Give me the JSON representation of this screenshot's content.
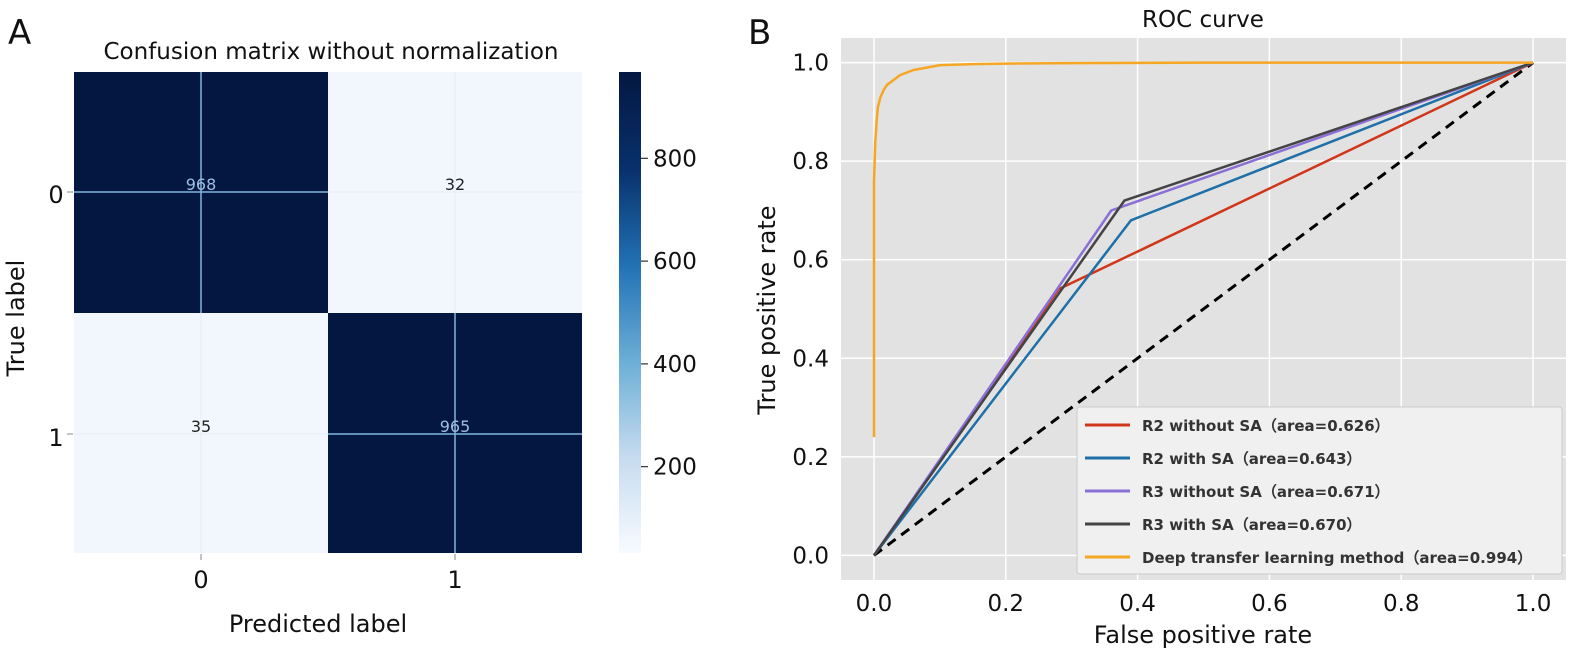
{
  "panels": {
    "a_letter": "A",
    "b_letter": "B"
  },
  "colors": {
    "dark_cell": "#041741",
    "light_cell": "#f2f7fd",
    "matrix_grid": "#7fb5dd",
    "roc_bg": "#e2e2e2",
    "roc_grid": "#ffffff",
    "chance_line": "#000000"
  },
  "chart_data": [
    {
      "type": "heatmap",
      "title": "Confusion matrix without normalization",
      "xlabel": "Predicted label",
      "ylabel": "True label",
      "row_labels": [
        "0",
        "1"
      ],
      "col_labels": [
        "0",
        "1"
      ],
      "values": [
        [
          968,
          32
        ],
        [
          35,
          965
        ]
      ],
      "colorbar": {
        "ticks": [
          200,
          400,
          600,
          800
        ],
        "range": [
          32,
          968
        ],
        "colormap": "Blues"
      },
      "grid": true
    },
    {
      "type": "line",
      "title": "ROC curve",
      "xlabel": "False positive rate",
      "ylabel": "True positive rate",
      "xlim": [
        -0.05,
        1.05
      ],
      "ylim": [
        -0.05,
        1.05
      ],
      "xticks": [
        "0.0",
        "0.2",
        "0.4",
        "0.6",
        "0.8",
        "1.0"
      ],
      "yticks": [
        "0.0",
        "0.2",
        "0.4",
        "0.6",
        "0.8",
        "1.0"
      ],
      "grid": true,
      "legend_position": "lower-right",
      "chance_line": {
        "x": [
          0,
          1
        ],
        "y": [
          0,
          1
        ],
        "style": "dashed"
      },
      "series": [
        {
          "name": "R2 without SA（area=0.626）",
          "color": "#d1361b",
          "x": [
            0,
            0.28,
            1
          ],
          "y": [
            0,
            0.54,
            1
          ]
        },
        {
          "name": "R2 with SA（area=0.643）",
          "color": "#1f6fa8",
          "x": [
            0,
            0.39,
            1
          ],
          "y": [
            0,
            0.68,
            1
          ]
        },
        {
          "name": "R3 without SA（area=0.671）",
          "color": "#8a6fd6",
          "x": [
            0,
            0.36,
            1
          ],
          "y": [
            0,
            0.7,
            1
          ]
        },
        {
          "name": "R3 with SA（area=0.670）",
          "color": "#444444",
          "x": [
            0,
            0.38,
            1
          ],
          "y": [
            0,
            0.72,
            1
          ]
        },
        {
          "name": "Deep transfer learning method（area=0.994）",
          "color": "#f5a623",
          "x": [
            0,
            0,
            0.002,
            0.004,
            0.006,
            0.01,
            0.015,
            0.02,
            0.03,
            0.04,
            0.06,
            0.08,
            0.1,
            0.15,
            0.2,
            0.3,
            0.5,
            0.7,
            1.0
          ],
          "y": [
            0.24,
            0.76,
            0.84,
            0.88,
            0.91,
            0.93,
            0.945,
            0.955,
            0.965,
            0.975,
            0.985,
            0.99,
            0.995,
            0.997,
            0.998,
            0.999,
            1.0,
            1.0,
            1.0
          ]
        }
      ]
    }
  ]
}
